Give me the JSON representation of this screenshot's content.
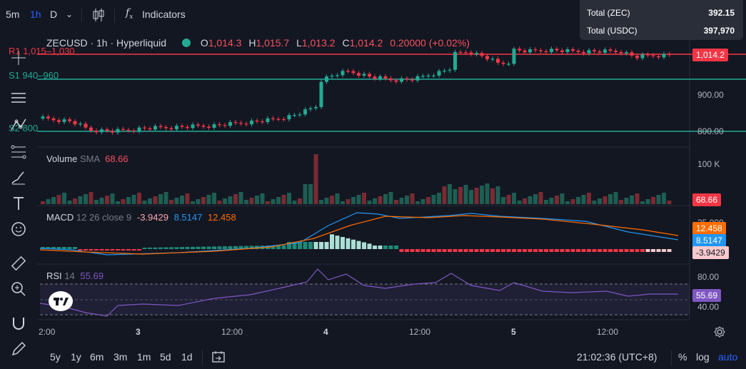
{
  "toolbar": {
    "intervals": [
      "5m",
      "1h",
      "D"
    ],
    "active_interval": "1h",
    "indicators_label": "Indicators"
  },
  "balances": [
    {
      "label": "Total (ZEC)",
      "value": "392.15"
    },
    {
      "label": "Total (USDC)",
      "value": "397,970"
    }
  ],
  "legend": {
    "symbol": "ZECUSD · 1h · Hyperliquid",
    "o_label": "O",
    "o": "1,014.3",
    "h_label": "H",
    "h": "1,015.7",
    "l_label": "L",
    "l": "1,013.2",
    "c_label": "C",
    "c": "1,014.2",
    "change": "0.20000 (+0.02%)"
  },
  "levels": [
    {
      "label": "R1 1,015–1,030",
      "color": "#f23645"
    },
    {
      "label": "S1 940–960",
      "color": "#22ab94"
    },
    {
      "label": "S2 800",
      "color": "#22ab94"
    }
  ],
  "price_axis": {
    "ticks": [
      "900.00",
      "800.00"
    ],
    "last_price": "1,014.2",
    "last_price_color": "#f23645"
  },
  "volume": {
    "title": "Volume",
    "sub": "SMA",
    "value": "68.66",
    "axis_tick": "100 K",
    "tag": "68.66"
  },
  "macd": {
    "title": "MACD",
    "params": "12 26 close 9",
    "hist": "-3.9429",
    "macd": "8.5147",
    "signal": "12.458",
    "axis_tick": "25.000",
    "tags": {
      "signal": "12.458",
      "macd": "8.5147",
      "hist": "-3.9429"
    }
  },
  "rsi": {
    "title": "RSI",
    "params": "14",
    "value": "55.69",
    "axis_ticks": [
      "80.00",
      "40.00"
    ],
    "tag": "55.69"
  },
  "time_axis": [
    "2:00",
    "3",
    "12:00",
    "4",
    "12:00",
    "5",
    "12:00"
  ],
  "bottom": {
    "ranges": [
      "5y",
      "1y",
      "6m",
      "3m",
      "1m",
      "5d",
      "1d"
    ],
    "clock": "21:02:36 (UTC+8)",
    "pct": "%",
    "log": "log",
    "auto": "auto"
  }
}
